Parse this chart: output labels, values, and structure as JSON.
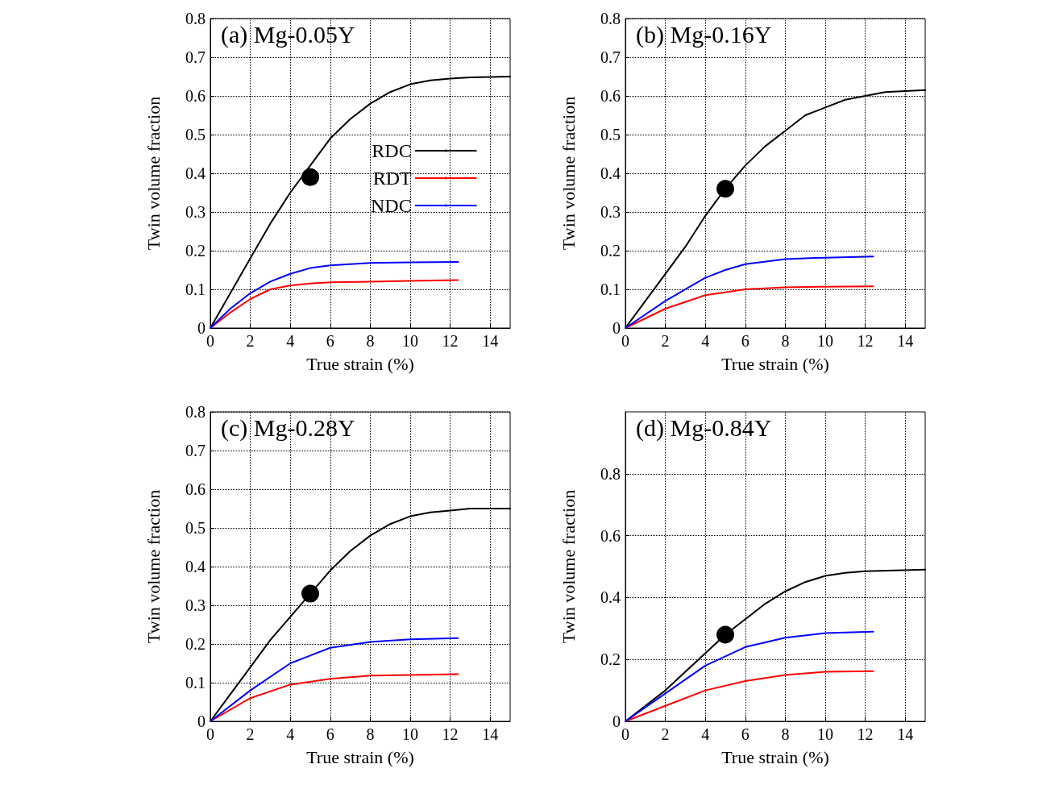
{
  "chart_data": [
    {
      "type": "line",
      "title": "(a) Mg-0.05Y",
      "xlabel": "True strain (%)",
      "ylabel": "Twin volume fraction",
      "xlim": [
        0,
        15
      ],
      "xticks": [
        0,
        2,
        4,
        6,
        8,
        10,
        12,
        14
      ],
      "ylim": [
        0,
        0.8
      ],
      "yticks": [
        0,
        0.1,
        0.2,
        0.3,
        0.4,
        0.5,
        0.6,
        0.7,
        0.8
      ],
      "grid": true,
      "legend": "right",
      "marker": "none",
      "line_style": "solid",
      "series": [
        {
          "name": "RDC",
          "color": "#000000",
          "x": [
            0,
            1,
            2,
            3,
            4,
            5,
            6,
            7,
            8,
            9,
            10,
            11,
            12,
            13,
            15
          ],
          "values": [
            0,
            0.09,
            0.18,
            0.27,
            0.35,
            0.42,
            0.49,
            0.54,
            0.58,
            0.61,
            0.63,
            0.64,
            0.645,
            0.648,
            0.65
          ]
        },
        {
          "name": "RDT",
          "color": "#ff0000",
          "x": [
            0,
            1,
            2,
            3,
            4,
            5,
            6,
            8,
            10,
            12.4
          ],
          "values": [
            0,
            0.04,
            0.075,
            0.1,
            0.11,
            0.115,
            0.118,
            0.12,
            0.122,
            0.124
          ]
        },
        {
          "name": "NDC",
          "color": "#0000ff",
          "x": [
            0,
            1,
            2,
            3,
            4,
            5,
            6,
            8,
            10,
            12.4
          ],
          "values": [
            0,
            0.05,
            0.09,
            0.12,
            0.14,
            0.155,
            0.162,
            0.168,
            0.17,
            0.171
          ]
        },
        {
          "type": "scatter",
          "marker": "circle",
          "color": "#000000",
          "x": [
            5
          ],
          "values": [
            0.39
          ]
        }
      ]
    },
    {
      "type": "line",
      "title": "(b) Mg-0.16Y",
      "xlabel": "True strain (%)",
      "ylabel": "Twin volume fraction",
      "xlim": [
        0,
        15
      ],
      "xticks": [
        0,
        2,
        4,
        6,
        8,
        10,
        12,
        14
      ],
      "ylim": [
        0,
        0.8
      ],
      "yticks": [
        0,
        0.1,
        0.2,
        0.3,
        0.4,
        0.5,
        0.6,
        0.7,
        0.8
      ],
      "grid": true,
      "marker": "none",
      "line_style": "solid",
      "series": [
        {
          "color": "#000000",
          "x": [
            0,
            1,
            2,
            3,
            4,
            5,
            6,
            7,
            8,
            9,
            10,
            11,
            12,
            13,
            15
          ],
          "values": [
            0,
            0.07,
            0.14,
            0.21,
            0.29,
            0.36,
            0.42,
            0.47,
            0.51,
            0.55,
            0.57,
            0.59,
            0.6,
            0.61,
            0.615
          ]
        },
        {
          "color": "#ff0000",
          "x": [
            0,
            2,
            4,
            6,
            8,
            10,
            12.4
          ],
          "values": [
            0,
            0.05,
            0.085,
            0.1,
            0.105,
            0.107,
            0.108
          ]
        },
        {
          "color": "#0000ff",
          "x": [
            0,
            2,
            4,
            5,
            6,
            8,
            10,
            12.4
          ],
          "values": [
            0,
            0.07,
            0.13,
            0.15,
            0.165,
            0.178,
            0.182,
            0.185
          ]
        },
        {
          "type": "scatter",
          "marker": "circle",
          "color": "#000000",
          "x": [
            5
          ],
          "values": [
            0.36
          ]
        }
      ]
    },
    {
      "type": "line",
      "title": "(c) Mg-0.28Y",
      "xlabel": "True strain (%)",
      "ylabel": "Twin volume fraction",
      "xlim": [
        0,
        15
      ],
      "xticks": [
        0,
        2,
        4,
        6,
        8,
        10,
        12,
        14
      ],
      "ylim": [
        0,
        0.8
      ],
      "yticks": [
        0,
        0.1,
        0.2,
        0.3,
        0.4,
        0.5,
        0.6,
        0.7,
        0.8
      ],
      "grid": true,
      "marker": "none",
      "line_style": "solid",
      "series": [
        {
          "color": "#000000",
          "x": [
            0,
            1,
            2,
            3,
            4,
            5,
            6,
            7,
            8,
            9,
            10,
            11,
            12,
            13,
            15
          ],
          "values": [
            0,
            0.07,
            0.14,
            0.21,
            0.27,
            0.33,
            0.39,
            0.44,
            0.48,
            0.51,
            0.53,
            0.54,
            0.545,
            0.55,
            0.55
          ]
        },
        {
          "color": "#ff0000",
          "x": [
            0,
            2,
            4,
            6,
            8,
            10,
            12.4
          ],
          "values": [
            0,
            0.06,
            0.095,
            0.11,
            0.118,
            0.12,
            0.122
          ]
        },
        {
          "color": "#0000ff",
          "x": [
            0,
            2,
            4,
            5,
            6,
            8,
            10,
            12.4
          ],
          "values": [
            0,
            0.08,
            0.15,
            0.17,
            0.19,
            0.205,
            0.212,
            0.215
          ]
        },
        {
          "type": "scatter",
          "marker": "circle",
          "color": "#000000",
          "x": [
            5
          ],
          "values": [
            0.33
          ]
        }
      ]
    },
    {
      "type": "line",
      "title": "(d) Mg-0.84Y",
      "xlabel": "True strain (%)",
      "ylabel": "Twin volume fraction",
      "xlim": [
        0,
        15
      ],
      "xticks": [
        0,
        2,
        4,
        6,
        8,
        10,
        12,
        14
      ],
      "ylim": [
        0,
        1
      ],
      "yticks": [
        0,
        0.2,
        0.4,
        0.6,
        0.8
      ],
      "grid": true,
      "marker": "none",
      "line_style": "solid",
      "series": [
        {
          "color": "#000000",
          "x": [
            0,
            1,
            2,
            3,
            4,
            5,
            6,
            7,
            8,
            9,
            10,
            11,
            12,
            15
          ],
          "values": [
            0,
            0.05,
            0.1,
            0.16,
            0.22,
            0.28,
            0.33,
            0.38,
            0.42,
            0.45,
            0.47,
            0.48,
            0.485,
            0.49
          ]
        },
        {
          "color": "#ff0000",
          "x": [
            0,
            2,
            4,
            6,
            8,
            10,
            12.4
          ],
          "values": [
            0,
            0.05,
            0.1,
            0.13,
            0.15,
            0.16,
            0.162
          ]
        },
        {
          "color": "#0000ff",
          "x": [
            0,
            2,
            4,
            5,
            6,
            8,
            10,
            12.4
          ],
          "values": [
            0,
            0.09,
            0.18,
            0.21,
            0.24,
            0.27,
            0.285,
            0.29
          ]
        },
        {
          "type": "scatter",
          "marker": "circle",
          "color": "#000000",
          "x": [
            5
          ],
          "values": [
            0.28
          ]
        }
      ]
    }
  ]
}
